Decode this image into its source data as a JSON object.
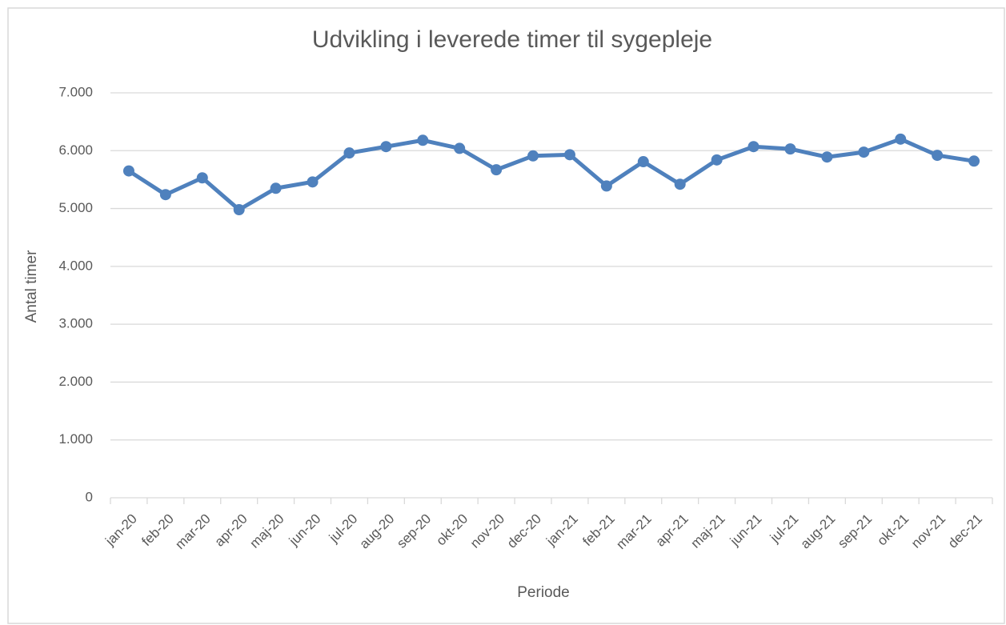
{
  "chart_data": {
    "type": "line",
    "title": "Udvikling i leverede timer til sygepleje",
    "x_label": "Periode",
    "y_label": "Antal timer",
    "categories": [
      "jan-20",
      "feb-20",
      "mar-20",
      "apr-20",
      "maj-20",
      "jun-20",
      "jul-20",
      "aug-20",
      "sep-20",
      "okt-20",
      "nov-20",
      "dec-20",
      "jan-21",
      "feb-21",
      "mar-21",
      "apr-21",
      "maj-21",
      "jun-21",
      "jul-21",
      "aug-21",
      "sep-21",
      "okt-21",
      "nov-21",
      "dec-21"
    ],
    "values": [
      5650,
      5240,
      5530,
      4980,
      5350,
      5460,
      5960,
      6070,
      6180,
      6040,
      5670,
      5910,
      5930,
      5390,
      5810,
      5420,
      5840,
      6070,
      6030,
      5890,
      5975,
      6200,
      5920,
      5820
    ],
    "color": "#4f81bd",
    "ylim": [
      0,
      7000
    ],
    "yticks": [
      0,
      {
        "value": 1000,
        "label": "1.000"
      },
      {
        "value": 2000,
        "label": "2.000"
      },
      {
        "value": 3000,
        "label": "3.000"
      },
      {
        "value": 4000,
        "label": "4.000"
      },
      {
        "value": 5000,
        "label": "5.000"
      },
      {
        "value": 6000,
        "label": "6.000"
      },
      {
        "value": 7000,
        "label": "7.000"
      }
    ],
    "grid": true
  }
}
